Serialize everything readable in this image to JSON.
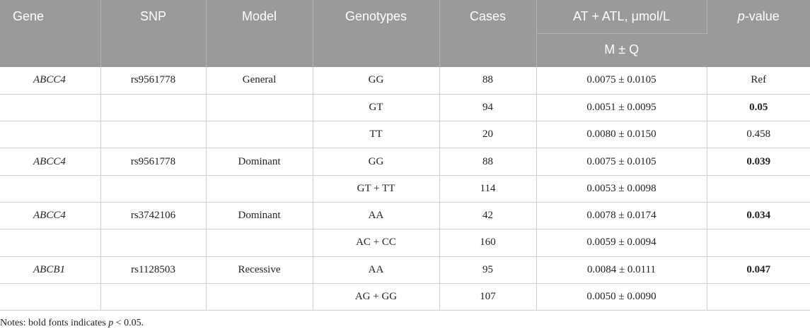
{
  "headers": {
    "gene": "Gene",
    "snp": "SNP",
    "model": "Model",
    "genotypes": "Genotypes",
    "cases": "Cases",
    "concentration": "AT + ATL, μmol/L",
    "concentration_sub": "M ± Q",
    "p_value_italic": "p",
    "p_value_rest": "-value"
  },
  "rows": [
    {
      "gene": "ABCC4",
      "snp": "rs9561778",
      "model": "General",
      "genotype": "GG",
      "cases": "88",
      "value": "0.0075 ± 0.0105",
      "p": "Ref",
      "p_bold": false
    },
    {
      "gene": "",
      "snp": "",
      "model": "",
      "genotype": "GT",
      "cases": "94",
      "value": "0.0051 ± 0.0095",
      "p": "0.05",
      "p_bold": true
    },
    {
      "gene": "",
      "snp": "",
      "model": "",
      "genotype": "TT",
      "cases": "20",
      "value": "0.0080 ± 0.0150",
      "p": "0.458",
      "p_bold": false
    },
    {
      "gene": "ABCC4",
      "snp": "rs9561778",
      "model": "Dominant",
      "genotype": "GG",
      "cases": "88",
      "value": "0.0075 ± 0.0105",
      "p": "0.039",
      "p_bold": true
    },
    {
      "gene": "",
      "snp": "",
      "model": "",
      "genotype": "GT + TT",
      "cases": "114",
      "value": "0.0053 ± 0.0098",
      "p": "",
      "p_bold": false
    },
    {
      "gene": "ABCC4",
      "snp": "rs3742106",
      "model": "Dominant",
      "genotype": "AA",
      "cases": "42",
      "value": "0.0078 ± 0.0174",
      "p": "0.034",
      "p_bold": true
    },
    {
      "gene": "",
      "snp": "",
      "model": "",
      "genotype": "AC + CC",
      "cases": "160",
      "value": "0.0059 ± 0.0094",
      "p": "",
      "p_bold": false
    },
    {
      "gene": "ABCB1",
      "snp": "rs1128503",
      "model": "Recessive",
      "genotype": "AA",
      "cases": "95",
      "value": "0.0084 ± 0.0111",
      "p": "0.047",
      "p_bold": true
    },
    {
      "gene": "",
      "snp": "",
      "model": "",
      "genotype": "AG + GG",
      "cases": "107",
      "value": "0.0050 ± 0.0090",
      "p": "",
      "p_bold": false
    }
  ],
  "notes": {
    "prefix": "Notes: bold fonts indicates ",
    "italic": "p",
    "suffix": " < 0.05."
  }
}
